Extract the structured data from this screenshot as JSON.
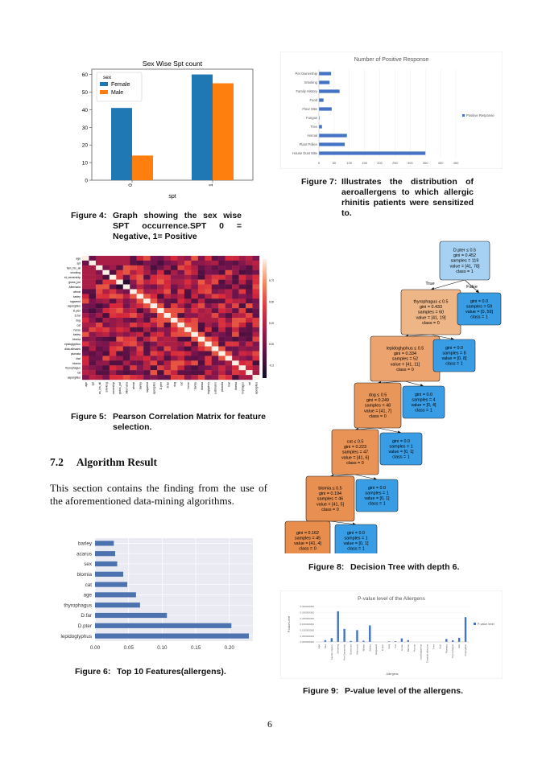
{
  "page_number": "6",
  "section": {
    "number": "7.2",
    "title": "Algorithm Result"
  },
  "paragraph": "This section contains the finding from the use of the aforementioned data-mining algorithms.",
  "captions": {
    "fig4": {
      "label": "Figure 4:",
      "text": "Graph showing the sex wise SPT occurrence.SPT 0 = Negative, 1= Positive"
    },
    "fig5": {
      "label": "Figure 5:",
      "text": "Pearson Correlation Matrix for feature selection."
    },
    "fig6": {
      "label": "Figure 6:",
      "text": "Top 10 Features(allergens)."
    },
    "fig7": {
      "label": "Figure 7:",
      "text": "Illustrates the distribution of aeroallergens to which allergic rhinitis patients were sensitized to."
    },
    "fig8": {
      "label": "Figure 8:",
      "text": "Decision Tree with depth 6."
    },
    "fig9": {
      "label": "Figure 9:",
      "text": "P-value level of the allergens."
    }
  },
  "chart_data": [
    {
      "id": "fig4",
      "type": "bar",
      "title": "Sex Wise Spt count",
      "xlabel": "spt",
      "ylabel": "",
      "categories": [
        "0",
        "1"
      ],
      "series": [
        {
          "name": "Female",
          "values": [
            41,
            60
          ],
          "color": "#1f77b4"
        },
        {
          "name": "Male",
          "values": [
            14,
            55
          ],
          "color": "#ff7f0e"
        }
      ],
      "legend_title": "sex",
      "ylim": [
        0,
        63
      ],
      "yticks": [
        "0",
        "10",
        "20",
        "30",
        "40",
        "50",
        "60"
      ],
      "legend": "top-left"
    },
    {
      "id": "fig7",
      "type": "bar",
      "orientation": "horizontal",
      "title": "Number of Positive Response",
      "categories": [
        "Pet Ownership",
        "Smoking",
        "Family History",
        "Food",
        "Flour Mite",
        "Fungus",
        "Tree",
        "Animal",
        "Plant Pollen",
        "House Dust Mite"
      ],
      "series": [
        {
          "name": "Positive Response",
          "values": [
            40,
            35,
            68,
            15,
            42,
            2,
            10,
            92,
            85,
            350
          ],
          "color": "#4472c4"
        }
      ],
      "xlim": [
        0,
        450
      ],
      "xticks": [
        "0",
        "50",
        "100",
        "150",
        "200",
        "250",
        "300",
        "350",
        "400",
        "450"
      ],
      "legend": "right"
    },
    {
      "id": "fig5",
      "type": "heatmap",
      "labels": [
        "age",
        "spt",
        "fam_his_all",
        "smoking",
        "pet_ownership",
        "grass_pol",
        "Alternaria",
        "wheat",
        "barley",
        "ragweed",
        "aspergillus",
        "D.pter",
        "D.far",
        "dog",
        "cat",
        "horse",
        "barley",
        "blomia",
        "lepidoglyphus",
        "candida albicans",
        "plumata",
        "kiwi",
        "blomia",
        "thyrophagus",
        "rat",
        "aspergillus"
      ],
      "colorbar_ticks": [
        "0.75",
        "0.50",
        "0.25",
        "0.00",
        "-0.25"
      ],
      "colorbar_range": [
        -0.4,
        1.0
      ]
    },
    {
      "id": "fig6",
      "type": "bar",
      "orientation": "horizontal",
      "categories": [
        "barley",
        "acarus",
        "sex",
        "blomia",
        "cat",
        "age",
        "thyrophagus",
        "D.far",
        "D.pter",
        "lepidoglyphus"
      ],
      "values": [
        0.028,
        0.03,
        0.033,
        0.042,
        0.048,
        0.061,
        0.067,
        0.107,
        0.203,
        0.229
      ],
      "xlim": [
        0,
        0.235
      ],
      "xticks": [
        "0.00",
        "0.05",
        "0.10",
        "0.15",
        "0.20"
      ],
      "color": "#4c72b0"
    },
    {
      "id": "fig9",
      "type": "bar",
      "title": "P-value level of the  Allergens",
      "xlabel": "Allergens",
      "ylabel": "P-value Level",
      "categories": [
        "Age",
        "Sex",
        "Family History",
        "Smoking",
        "Pet Ownership",
        "Grass pol",
        "Alternaria",
        "Wheat",
        "Barley",
        "Ragweed",
        "D.pter",
        "Dog",
        "Cat",
        "Horse",
        "Blomia",
        "Acarus",
        "Lepidoglyphus",
        "Candida albicans",
        "Tree",
        "Kiwi",
        "Plumata",
        "Thyrophagus",
        "Rat",
        "Aspergillus"
      ],
      "series": [
        {
          "name": "P-value level",
          "values": [
            0.0,
            0.015,
            0.032,
            0.26,
            0.11,
            0.008,
            0.1,
            0.01,
            0.14,
            0.0,
            0.0,
            0.005,
            0.006,
            0.03,
            0.015,
            0.0,
            0.0,
            0.0,
            0.0,
            0.0,
            0.025,
            0.014,
            0.035,
            0.21
          ],
          "color": "#4472c4"
        }
      ],
      "ylim": [
        0,
        0.3
      ],
      "yticks": [
        "0.000000000",
        "0.050000000",
        "0.100000000",
        "0.150000000",
        "0.200000000",
        "0.250000000",
        "0.300000000"
      ],
      "legend": "right"
    }
  ],
  "tree": {
    "edge_labels": {
      "true": "True",
      "false": "False"
    },
    "nodes": [
      {
        "id": "n0",
        "lines": [
          "D.pter ≤ 0.5",
          "gini = 0.452",
          "samples = 119",
          "value = [41, 78]",
          "class = 1"
        ],
        "fill": "#a6d1f2"
      },
      {
        "id": "n1",
        "lines": [
          "thyrophagus ≤ 0.5",
          "gini = 0.433",
          "samples = 60",
          "value = [41, 19]",
          "class = 0"
        ],
        "fill": "#eeb587"
      },
      {
        "id": "n2",
        "lines": [
          "gini = 0.0",
          "samples = 59",
          "value = [0, 59]",
          "class = 1"
        ],
        "fill": "#399de5"
      },
      {
        "id": "n3",
        "lines": [
          "lepidoglyphus ≤ 0.5",
          "gini = 0.334",
          "samples = 52",
          "value = [41, 11]",
          "class = 0"
        ],
        "fill": "#eca36e"
      },
      {
        "id": "n4",
        "lines": [
          "gini = 0.0",
          "samples = 8",
          "value = [0, 8]",
          "class = 1"
        ],
        "fill": "#399de5"
      },
      {
        "id": "n5",
        "lines": [
          "dog ≤ 0.5",
          "gini = 0.249",
          "samples = 48",
          "value = [41, 7]",
          "class = 0"
        ],
        "fill": "#e9965a"
      },
      {
        "id": "n6",
        "lines": [
          "gini = 0.0",
          "samples = 4",
          "value = [0, 4]",
          "class = 1"
        ],
        "fill": "#399de5"
      },
      {
        "id": "n7",
        "lines": [
          "cat ≤ 0.5",
          "gini = 0.223",
          "samples = 47",
          "value = [41, 6]",
          "class = 0"
        ],
        "fill": "#e99356"
      },
      {
        "id": "n8",
        "lines": [
          "gini = 0.0",
          "samples = 1",
          "value = [0, 1]",
          "class = 1"
        ],
        "fill": "#399de5"
      },
      {
        "id": "n9",
        "lines": [
          "blomia ≤ 0.5",
          "gini = 0.194",
          "samples = 46",
          "value = [41, 5]",
          "class = 0"
        ],
        "fill": "#e89051"
      },
      {
        "id": "n10",
        "lines": [
          "gini = 0.0",
          "samples = 1",
          "value = [0, 1]",
          "class = 1"
        ],
        "fill": "#399de5"
      },
      {
        "id": "n11",
        "lines": [
          "gini = 0.162",
          "samples = 45",
          "value = [41, 4]",
          "class = 0"
        ],
        "fill": "#e88d4c"
      },
      {
        "id": "n12",
        "lines": [
          "gini = 0.0",
          "samples = 1",
          "value = [0, 1]",
          "class = 1"
        ],
        "fill": "#399de5"
      }
    ],
    "edges": [
      [
        "n0",
        "n1"
      ],
      [
        "n0",
        "n2"
      ],
      [
        "n1",
        "n3"
      ],
      [
        "n1",
        "n4"
      ],
      [
        "n3",
        "n5"
      ],
      [
        "n3",
        "n6"
      ],
      [
        "n5",
        "n7"
      ],
      [
        "n5",
        "n8"
      ],
      [
        "n7",
        "n9"
      ],
      [
        "n7",
        "n10"
      ],
      [
        "n9",
        "n11"
      ],
      [
        "n9",
        "n12"
      ]
    ]
  }
}
